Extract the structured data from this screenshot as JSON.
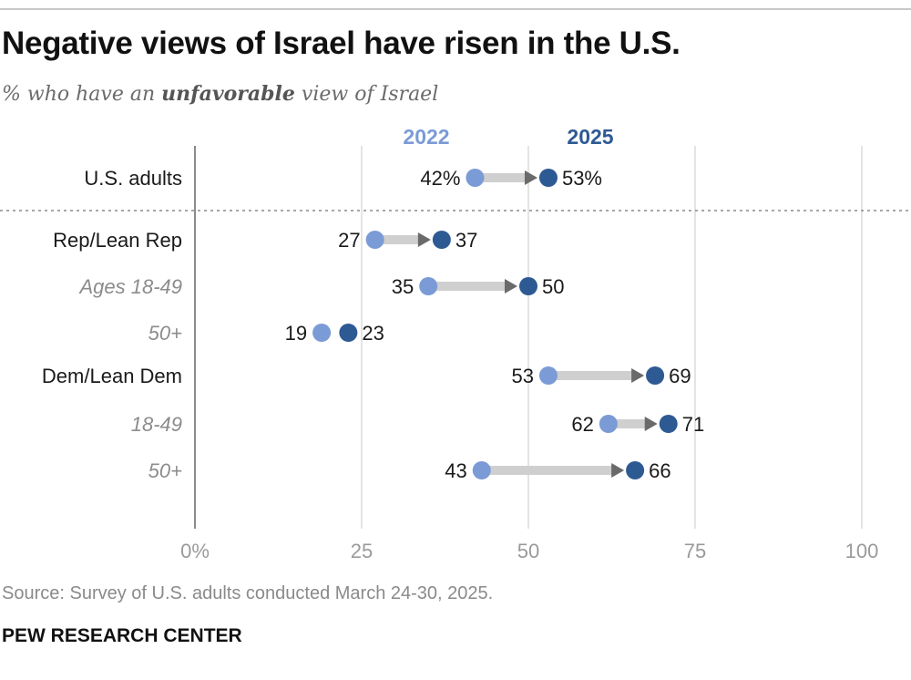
{
  "chart_data": {
    "type": "dumbbell",
    "title": "Negative views of Israel have risen in the U.S.",
    "subtitle_pre": "% who have an ",
    "subtitle_bold": "unfavorable",
    "subtitle_post": " view of Israel",
    "series": [
      {
        "name": "2022",
        "color": "#7b9bd6"
      },
      {
        "name": "2025",
        "color": "#2e5a94"
      }
    ],
    "xlim": [
      0,
      100
    ],
    "xticks": [
      0,
      25,
      50,
      75,
      100
    ],
    "xtick_labels": [
      "0%",
      "25",
      "50",
      "75",
      "100"
    ],
    "rows": [
      {
        "label": "U.S. adults",
        "style": "group",
        "v2022": 42,
        "v2025": 53,
        "label2022": "42%",
        "label2025": "53%"
      },
      {
        "label": "Rep/Lean Rep",
        "style": "group",
        "v2022": 27,
        "v2025": 37,
        "label2022": "27",
        "label2025": "37"
      },
      {
        "label": "Ages 18-49",
        "style": "sub",
        "v2022": 35,
        "v2025": 50,
        "label2022": "35",
        "label2025": "50"
      },
      {
        "label": "50+",
        "style": "sub",
        "v2022": 19,
        "v2025": 23,
        "label2022": "19",
        "label2025": "23"
      },
      {
        "label": "Dem/Lean Dem",
        "style": "group",
        "v2022": 53,
        "v2025": 69,
        "label2022": "53",
        "label2025": "69"
      },
      {
        "label": "18-49",
        "style": "sub",
        "v2022": 62,
        "v2025": 71,
        "label2022": "62",
        "label2025": "71"
      },
      {
        "label": "50+",
        "style": "sub",
        "v2022": 43,
        "v2025": 66,
        "label2022": "43",
        "label2025": "66"
      }
    ],
    "source": "Source: Survey of U.S. adults conducted March 24-30, 2025.",
    "brand": "PEW RESEARCH CENTER"
  }
}
